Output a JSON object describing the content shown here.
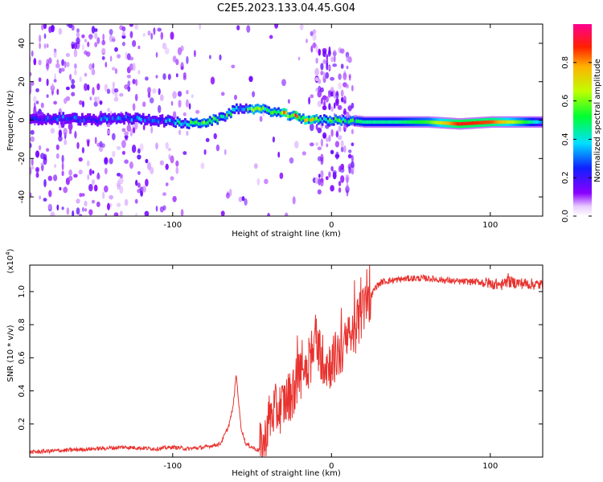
{
  "title": "C2E5.2023.133.04.45.G04",
  "chart_data": [
    {
      "type": "heatmap",
      "name": "spectrogram",
      "xlabel": "Height of straight line (km)",
      "ylabel": "Frequency (Hz)",
      "xlim": [
        -190,
        133
      ],
      "ylim": [
        -50,
        50
      ],
      "xticks": [
        -100,
        0,
        100
      ],
      "xtick_labels": [
        "-100",
        "0",
        "100"
      ],
      "yticks": [
        -40,
        -20,
        0,
        20,
        40
      ],
      "ytick_labels": [
        "-40",
        "-20",
        "0",
        "20",
        "40"
      ],
      "colorbar": {
        "label": "Normalized spectral amplitude",
        "range": [
          0,
          1
        ],
        "ticks": [
          0.0,
          0.2,
          0.4,
          0.6,
          0.8
        ],
        "tick_labels": [
          "0.0",
          "0.2",
          "0.4",
          "0.6",
          "0.8"
        ]
      },
      "ridge": {
        "x": [
          -190,
          -170,
          -150,
          -130,
          -110,
          -100,
          -90,
          -80,
          -70,
          -60,
          -50,
          -40,
          -30,
          -20,
          -10,
          0,
          10,
          20,
          40,
          60,
          80,
          100,
          120,
          133
        ],
        "y": [
          0,
          1,
          0,
          1,
          0,
          -1,
          -2,
          -1,
          1,
          6,
          6,
          5,
          3,
          1,
          0,
          0,
          0,
          -1,
          -1,
          -1,
          -2,
          -1,
          -1,
          -1
        ],
        "amplitude": [
          0.25,
          0.3,
          0.3,
          0.35,
          0.3,
          0.45,
          0.5,
          0.55,
          0.5,
          0.5,
          0.55,
          0.6,
          0.8,
          0.9,
          0.6,
          0.5,
          0.55,
          0.45,
          0.45,
          0.55,
          0.9,
          0.85,
          0.55,
          0.3
        ]
      }
    },
    {
      "type": "line",
      "name": "snr",
      "xlabel": "Height of straight line (km)",
      "ylabel": "SNR (10 * v/v)",
      "exponent_label": "(x10",
      "exponent_power": "4",
      "exponent_close": ")",
      "xlim": [
        -190,
        133
      ],
      "ylim": [
        0,
        1.16
      ],
      "xticks": [
        -100,
        0,
        100
      ],
      "xtick_labels": [
        "-100",
        "0",
        "100"
      ],
      "yticks": [
        0.2,
        0.4,
        0.6,
        0.8,
        1.0
      ],
      "ytick_labels": [
        "0.2",
        "0.4",
        "0.6",
        "0.8",
        "1.0"
      ],
      "series": [
        {
          "name": "SNR",
          "color": "#e8322e",
          "x": [
            -190,
            -170,
            -150,
            -130,
            -110,
            -100,
            -90,
            -80,
            -70,
            -65,
            -62,
            -60,
            -57,
            -54,
            -50,
            -46,
            -42,
            -40,
            -36,
            -32,
            -28,
            -24,
            -20,
            -16,
            -12,
            -10,
            -6,
            -2,
            0,
            4,
            8,
            12,
            16,
            20,
            24,
            28,
            32,
            40,
            50,
            60,
            70,
            80,
            90,
            100,
            108,
            110,
            120,
            133
          ],
          "y": [
            0.03,
            0.04,
            0.05,
            0.06,
            0.05,
            0.06,
            0.05,
            0.06,
            0.08,
            0.18,
            0.3,
            0.5,
            0.18,
            0.08,
            0.06,
            0.04,
            0.08,
            0.22,
            0.28,
            0.3,
            0.35,
            0.4,
            0.5,
            0.55,
            0.6,
            0.72,
            0.6,
            0.55,
            0.58,
            0.62,
            0.66,
            0.72,
            0.8,
            0.88,
            0.96,
            1.03,
            1.06,
            1.07,
            1.08,
            1.08,
            1.07,
            1.06,
            1.06,
            1.05,
            1.04,
            1.06,
            1.05,
            1.04
          ]
        }
      ]
    }
  ]
}
